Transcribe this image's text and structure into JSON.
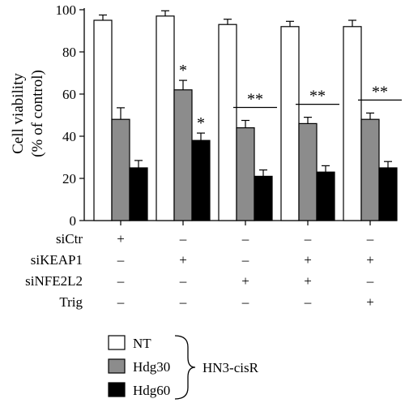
{
  "chart_data": {
    "type": "bar",
    "ylabel_lines": [
      "Cell viability",
      "(% of control)"
    ],
    "ylim": [
      0,
      100
    ],
    "yticks": [
      0,
      20,
      40,
      60,
      80,
      100
    ],
    "grid": false,
    "groups": 5,
    "series": [
      {
        "name": "NT",
        "color": "#ffffff",
        "values": [
          95,
          97,
          93,
          92,
          92
        ],
        "errors": [
          2.5,
          2.5,
          2.5,
          2.5,
          3
        ]
      },
      {
        "name": "Hdg30",
        "color": "#8c8c8c",
        "values": [
          48,
          62,
          44,
          46,
          48
        ],
        "errors": [
          5.5,
          4.5,
          3.5,
          3,
          3
        ]
      },
      {
        "name": "Hdg60",
        "color": "#000000",
        "values": [
          25,
          38,
          21,
          23,
          25
        ],
        "errors": [
          3.5,
          3.5,
          3,
          3,
          3
        ]
      }
    ],
    "annotations": [
      {
        "group": 1,
        "series": 1,
        "text": "*"
      },
      {
        "group": 1,
        "series": 2,
        "text": "*"
      },
      {
        "group": 2,
        "text": "**"
      },
      {
        "group": 3,
        "text": "**"
      },
      {
        "group": 4,
        "text": "**"
      }
    ],
    "conditions": [
      {
        "label": "siCtr",
        "values": [
          "+",
          "–",
          "–",
          "–",
          "–"
        ]
      },
      {
        "label": "siKEAP1",
        "values": [
          "–",
          "+",
          "–",
          "+",
          "+"
        ]
      },
      {
        "label": "siNFE2L2",
        "values": [
          "–",
          "–",
          "+",
          "+",
          "–"
        ]
      },
      {
        "label": "Trig",
        "values": [
          "–",
          "–",
          "–",
          "–",
          "+"
        ]
      }
    ],
    "legend_group_label": "HN3-cisR",
    "legend_position": "bottom-center"
  }
}
